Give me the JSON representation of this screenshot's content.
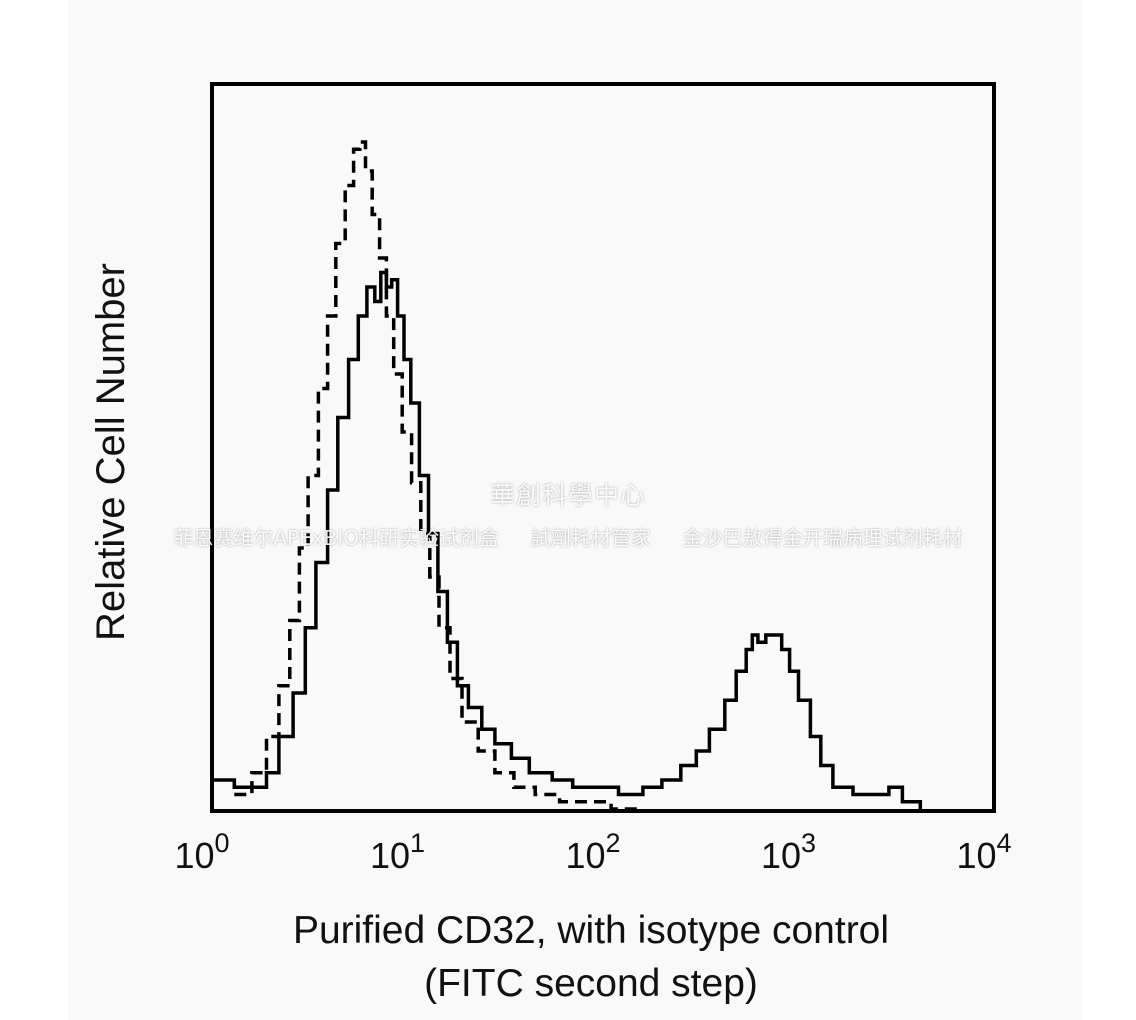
{
  "chart_data": {
    "type": "area",
    "title": "",
    "xlabel_line1": "Purified CD32, with isotype control",
    "xlabel_line2": "(FITC second step)",
    "ylabel": "Relative Cell Number",
    "x_scale": "log",
    "xlim": [
      1,
      10000
    ],
    "ylim": [
      0,
      100
    ],
    "grid": false,
    "legend": "none",
    "x_ticks": [
      {
        "base": "10",
        "exp": "0",
        "value": 1
      },
      {
        "base": "10",
        "exp": "1",
        "value": 10
      },
      {
        "base": "10",
        "exp": "2",
        "value": 100
      },
      {
        "base": "10",
        "exp": "3",
        "value": 1000
      },
      {
        "base": "10",
        "exp": "4",
        "value": 10000
      }
    ],
    "series": [
      {
        "style": "solid",
        "color": "#000000",
        "points": [
          [
            1.0,
            4
          ],
          [
            1.3,
            3
          ],
          [
            1.6,
            3
          ],
          [
            1.9,
            5
          ],
          [
            2.2,
            10
          ],
          [
            2.6,
            16
          ],
          [
            3.0,
            25
          ],
          [
            3.4,
            34
          ],
          [
            3.9,
            44
          ],
          [
            4.4,
            54
          ],
          [
            5.0,
            62
          ],
          [
            5.6,
            68
          ],
          [
            6.2,
            72
          ],
          [
            6.8,
            70
          ],
          [
            7.3,
            74
          ],
          [
            7.8,
            72
          ],
          [
            8.3,
            73
          ],
          [
            8.9,
            68
          ],
          [
            9.6,
            62
          ],
          [
            10.4,
            56
          ],
          [
            11.5,
            46
          ],
          [
            12.8,
            38
          ],
          [
            14.3,
            30
          ],
          [
            16.0,
            23
          ],
          [
            18.0,
            17
          ],
          [
            20.5,
            14
          ],
          [
            24,
            11
          ],
          [
            28,
            9
          ],
          [
            34,
            7
          ],
          [
            42,
            5
          ],
          [
            55,
            4
          ],
          [
            70,
            3
          ],
          [
            90,
            3
          ],
          [
            120,
            2
          ],
          [
            160,
            3
          ],
          [
            200,
            4
          ],
          [
            250,
            6
          ],
          [
            300,
            8
          ],
          [
            350,
            11
          ],
          [
            420,
            15
          ],
          [
            480,
            19
          ],
          [
            540,
            22
          ],
          [
            580,
            24
          ],
          [
            620,
            23
          ],
          [
            680,
            24
          ],
          [
            750,
            24
          ],
          [
            820,
            22
          ],
          [
            900,
            19
          ],
          [
            1000,
            15
          ],
          [
            1150,
            10
          ],
          [
            1300,
            6
          ],
          [
            1500,
            3
          ],
          [
            1900,
            2
          ],
          [
            2400,
            2
          ],
          [
            2900,
            3
          ],
          [
            3400,
            1
          ],
          [
            4200,
            0
          ]
        ]
      },
      {
        "style": "dashed",
        "color": "#000000",
        "points": [
          [
            1.3,
            2
          ],
          [
            1.6,
            5
          ],
          [
            1.9,
            10
          ],
          [
            2.2,
            17
          ],
          [
            2.5,
            26
          ],
          [
            2.8,
            36
          ],
          [
            3.1,
            46
          ],
          [
            3.5,
            58
          ],
          [
            3.9,
            68
          ],
          [
            4.3,
            78
          ],
          [
            4.8,
            86
          ],
          [
            5.3,
            91
          ],
          [
            5.7,
            92
          ],
          [
            6.1,
            88
          ],
          [
            6.6,
            82
          ],
          [
            7.2,
            76
          ],
          [
            7.8,
            68
          ],
          [
            8.5,
            60
          ],
          [
            9.4,
            52
          ],
          [
            10.5,
            45
          ],
          [
            11.7,
            38
          ],
          [
            13.0,
            32
          ],
          [
            14.5,
            25
          ],
          [
            16.5,
            18
          ],
          [
            19.0,
            12
          ],
          [
            23,
            8
          ],
          [
            28,
            5
          ],
          [
            35,
            3
          ],
          [
            45,
            2
          ],
          [
            60,
            1
          ],
          [
            80,
            1
          ],
          [
            110,
            0
          ],
          [
            150,
            0
          ]
        ]
      }
    ]
  },
  "watermark": {
    "line1": "華創科學中心",
    "line2": "菲恩赛维尔APExBIO科研实验试剂盒     試劑耗材管家     金沙巴敖得金开瑞病理试剂耗材"
  }
}
